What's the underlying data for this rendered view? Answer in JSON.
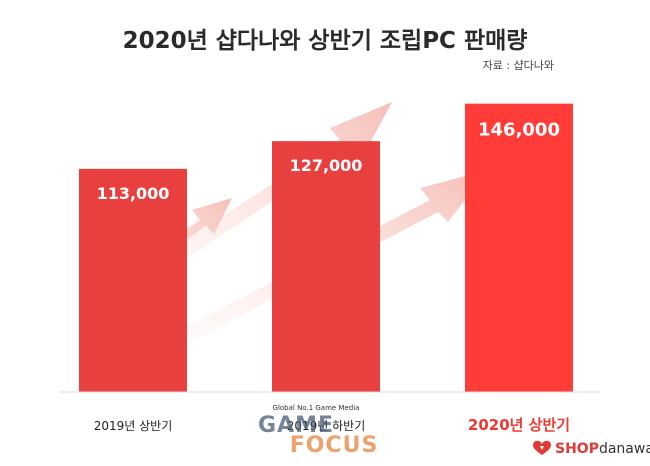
{
  "chart_data": {
    "type": "bar",
    "title": "2020년 샵다나와 상반기 조립PC 판매량",
    "source": "자료 : 샵다나와",
    "categories": [
      "2019년 상반기",
      "2019년 하반기",
      "2020년 상반기"
    ],
    "values": [
      113000,
      127000,
      146000
    ],
    "value_labels": [
      "113,000",
      "127,000",
      "146,000"
    ],
    "ylim": [
      0,
      160000
    ],
    "grid": false,
    "highlight_index": 2,
    "colors": {
      "bar": "#e8403f",
      "bar_highlight": "#ff3c38",
      "highlight_label": "#ee3a33",
      "value_text": "#ffffff",
      "title": "#2a2a2a",
      "category_text": "#222222",
      "arrow": "#f7c9c4"
    }
  },
  "watermark": {
    "tagline": "Global No.1 Game Media",
    "line1": "GAME",
    "line2": "FOCUS"
  },
  "logo": {
    "icon": "shopdanawa-heart-icon",
    "brand_strong": "SHOP",
    "brand_light": "danawa"
  }
}
